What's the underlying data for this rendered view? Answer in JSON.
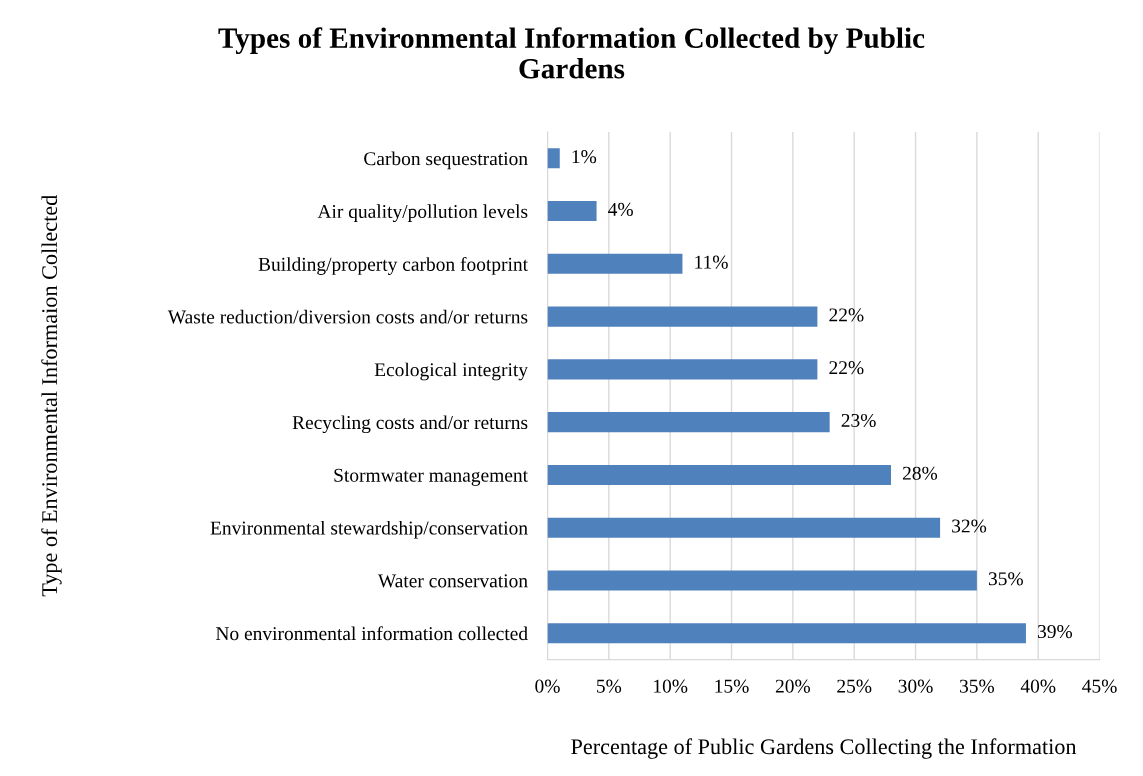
{
  "chart_data": {
    "type": "bar",
    "orientation": "horizontal",
    "title": "Types of Environmental Information Collected by Public\nGardens",
    "xlabel": "Percentage of Public Gardens Collecting the Information",
    "ylabel": "Type of Environmental Informaion Collected",
    "categories": [
      "Carbon sequestration",
      "Air quality/pollution levels",
      "Building/property carbon footprint",
      "Waste reduction/diversion costs and/or returns",
      "Ecological integrity",
      "Recycling costs and/or returns",
      "Stormwater management",
      "Environmental stewardship/conservation",
      "Water conservation",
      "No environmental information collected"
    ],
    "values": [
      1,
      4,
      11,
      22,
      22,
      23,
      28,
      32,
      35,
      39
    ],
    "value_labels": [
      "1%",
      "4%",
      "11%",
      "22%",
      "22%",
      "23%",
      "28%",
      "32%",
      "35%",
      "39%"
    ],
    "color": "#4f81bd",
    "xlim": [
      0,
      45
    ],
    "xticks": [
      {
        "value": 0,
        "label": "0%"
      },
      {
        "value": 5,
        "label": "5%"
      },
      {
        "value": 10,
        "label": "10%"
      },
      {
        "value": 15,
        "label": "15%"
      },
      {
        "value": 20,
        "label": "20%"
      },
      {
        "value": 25,
        "label": "25%"
      },
      {
        "value": 30,
        "label": "30%"
      },
      {
        "value": 35,
        "label": "35%"
      },
      {
        "value": 40,
        "label": "40%"
      },
      {
        "value": 45,
        "label": "45%"
      }
    ],
    "grid": "x",
    "legend": false
  }
}
